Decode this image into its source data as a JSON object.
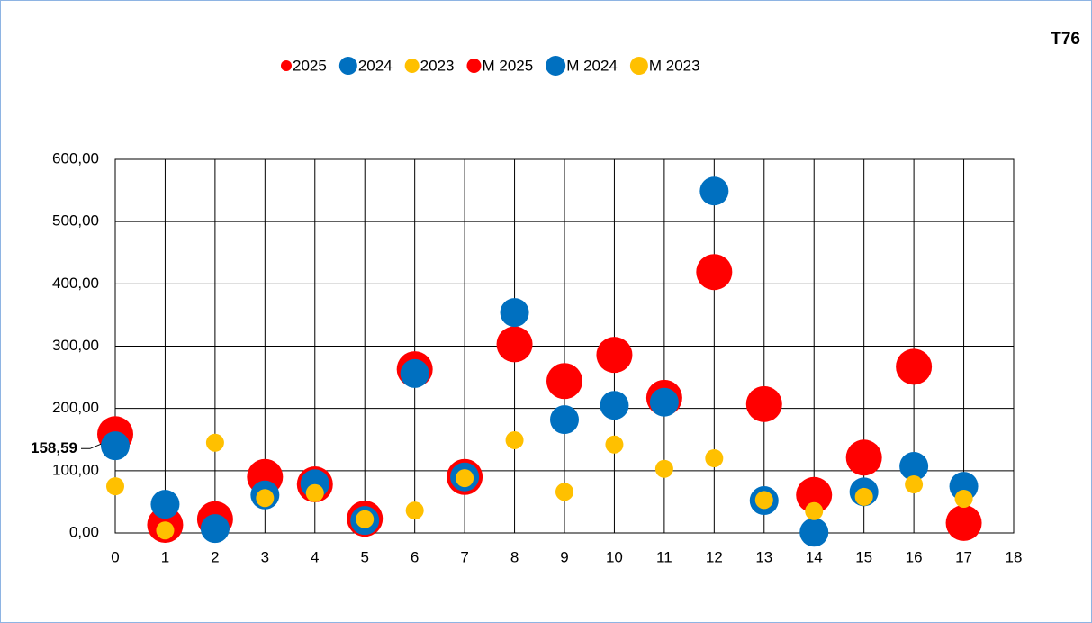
{
  "chart_data": {
    "type": "scatter",
    "title": "T76",
    "x": [
      0,
      1,
      2,
      3,
      4,
      5,
      6,
      7,
      8,
      9,
      10,
      11,
      12,
      13,
      14,
      15,
      16,
      17
    ],
    "series": [
      {
        "name": "2025",
        "color": "#ff0000",
        "values": [
          158.59,
          13,
          22,
          90,
          78,
          23,
          263,
          90,
          303,
          244,
          286,
          217,
          419,
          207,
          61,
          121,
          267,
          16
        ],
        "value_labels": [
          "158,59",
          null,
          null,
          null,
          null,
          null,
          null,
          null,
          null,
          null,
          null,
          null,
          null,
          null,
          null,
          null,
          null,
          null
        ]
      },
      {
        "name": "2024",
        "color": "#0070c0",
        "values": [
          140,
          46,
          7,
          61,
          79,
          20,
          256,
          90,
          354,
          182,
          205,
          210,
          549,
          52,
          1,
          66,
          107,
          75
        ]
      },
      {
        "name": "2023",
        "color": "#ffc000",
        "values": [
          75,
          4,
          145,
          56,
          64,
          22,
          36,
          88,
          149,
          66,
          142,
          103,
          120,
          53,
          35,
          58,
          78,
          55
        ]
      },
      {
        "name": "M 2025",
        "color": "#ff0000"
      },
      {
        "name": "M 2024",
        "color": "#0070c0"
      },
      {
        "name": "M 2023",
        "color": "#ffc000"
      }
    ],
    "xlim": [
      0,
      18
    ],
    "xticks": [
      0,
      1,
      2,
      3,
      4,
      5,
      6,
      7,
      8,
      9,
      10,
      11,
      12,
      13,
      14,
      15,
      16,
      17,
      18
    ],
    "ylim": [
      0,
      600
    ],
    "yticks": [
      {
        "value": 0,
        "label": "0,00"
      },
      {
        "value": 100,
        "label": "100,00"
      },
      {
        "value": 200,
        "label": "200,00"
      },
      {
        "value": 300,
        "label": "300,00"
      },
      {
        "value": 400,
        "label": "400,00"
      },
      {
        "value": 500,
        "label": "500,00"
      },
      {
        "value": 600,
        "label": "600,00"
      }
    ],
    "grid": true
  }
}
